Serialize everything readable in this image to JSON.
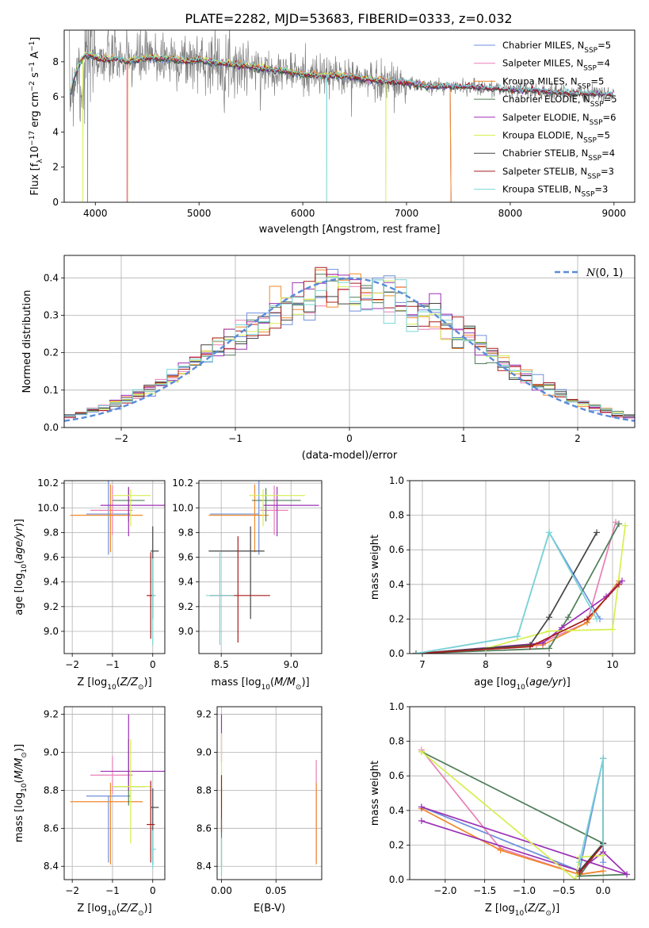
{
  "figure_title": "PLATE=2282, MJD=53683, FIBERID=0333, z=0.032",
  "colors": {
    "chabrier_miles": "#6e8fdc",
    "salpeter_miles": "#e87fb6",
    "kroupa_miles": "#f08a2b",
    "chabrier_elodie": "#4e7d58",
    "salpeter_elodie": "#9b30b5",
    "kroupa_elodie": "#d6ef50",
    "chabrier_stelib": "#444444",
    "salpeter_stelib": "#a81c1c",
    "kroupa_stelib": "#7ad6d6",
    "data": "#808080",
    "normal": "#5b8bd9"
  },
  "chart_data": [
    {
      "id": "spectrum",
      "type": "line",
      "xlabel": "wavelength [Angstrom, rest frame]",
      "ylabel": "Flux [f_λ10^-17 erg cm^-2 s^-1 A^-1]",
      "xlim": [
        3700,
        9200
      ],
      "ylim": [
        0,
        9.8
      ],
      "xticks": [
        4000,
        5000,
        6000,
        7000,
        8000,
        9000
      ],
      "yticks": [
        0,
        2,
        4,
        6,
        8
      ],
      "grid": false,
      "legend_placement": "top-right",
      "continuum": {
        "x": [
          3750,
          3800,
          3850,
          3900,
          4000,
          4100,
          4200,
          4300,
          4500,
          4700,
          4900,
          5000,
          5200,
          5400,
          5600,
          5800,
          6000,
          6200,
          6400,
          6600,
          6800,
          7000,
          7200,
          7400,
          7600,
          7800,
          8000,
          8200,
          8400,
          8600,
          8800,
          9000
        ],
        "y": [
          6.0,
          7.2,
          7.9,
          8.4,
          8.3,
          8.1,
          8.2,
          8.0,
          8.2,
          8.2,
          8.0,
          8.1,
          7.9,
          7.8,
          7.6,
          7.5,
          7.3,
          7.2,
          7.2,
          7.0,
          6.9,
          6.8,
          6.6,
          6.6,
          6.6,
          6.5,
          6.4,
          6.4,
          6.3,
          6.2,
          6.2,
          6.1
        ]
      },
      "series": [
        {
          "name": "Chabrier MILES, N_SSP=5",
          "color_key": "chabrier_miles",
          "drop_at": [
            3925
          ],
          "end": 7430
        },
        {
          "name": "Salpeter MILES, N_SSP=4",
          "color_key": "salpeter_miles",
          "drop_at": [
            4305
          ],
          "end": 7430
        },
        {
          "name": "Kroupa MILES, N_SSP=5",
          "color_key": "kroupa_miles",
          "drop_at": [
            4310
          ],
          "end": 7430
        },
        {
          "name": "Chabrier ELODIE, N_SSP=5",
          "color_key": "chabrier_elodie",
          "drop_at": [],
          "end": 9000
        },
        {
          "name": "Salpeter ELODIE, N_SSP=6",
          "color_key": "salpeter_elodie",
          "drop_at": [],
          "end": 9000
        },
        {
          "name": "Kroupa ELODIE, N_SSP=5",
          "color_key": "kroupa_elodie",
          "drop_at": [
            3880,
            6800
          ],
          "end": 6800
        },
        {
          "name": "Chabrier STELIB, N_SSP=4",
          "color_key": "chabrier_stelib",
          "drop_at": [],
          "end": 9000
        },
        {
          "name": "Salpeter STELIB, N_SSP=3",
          "color_key": "salpeter_stelib",
          "drop_at": [],
          "end": 9000
        },
        {
          "name": "Kroupa STELIB, N_SSP=3",
          "color_key": "kroupa_stelib",
          "drop_at": [
            6230
          ],
          "end": 9000
        }
      ]
    },
    {
      "id": "residuals",
      "type": "step",
      "xlabel": "(data-model)/error",
      "ylabel": "Normed distribution",
      "xlim": [
        -2.5,
        2.5
      ],
      "ylim": [
        0,
        0.46
      ],
      "xticks": [
        -2,
        -1,
        0,
        1,
        2
      ],
      "yticks": [
        0.0,
        0.1,
        0.2,
        0.3,
        0.4
      ],
      "grid": true,
      "legend_placement": "top-right",
      "legend_label": "N(0,1)",
      "bin_width": 0.1,
      "bin_start": -2.5
    },
    {
      "id": "age-vs-Z",
      "type": "errorbar",
      "xlabel": "Z [log10(Z/Z⊙)]",
      "ylabel": "age [log10(age/yr)]",
      "xlim": [
        -2.2,
        0.3
      ],
      "ylim": [
        8.82,
        10.22
      ],
      "xticks": [
        -2,
        -1,
        0
      ],
      "yticks": [
        9.0,
        9.2,
        9.4,
        9.6,
        9.8,
        10.0,
        10.2
      ],
      "grid": true,
      "points": [
        {
          "color_key": "chabrier_miles",
          "x": -1.1,
          "xerr": [
            0.55,
            0.55
          ],
          "y": 9.95,
          "yerr": [
            0.33,
            0.3
          ]
        },
        {
          "color_key": "salpeter_miles",
          "x": -1.0,
          "xerr": [
            0.55,
            0.5
          ],
          "y": 9.98,
          "yerr": [
            0.2,
            0.2
          ]
        },
        {
          "color_key": "kroupa_miles",
          "x": -1.05,
          "xerr": [
            1.0,
            0.8
          ],
          "y": 9.94,
          "yerr": [
            0.3,
            0.25
          ]
        },
        {
          "color_key": "chabrier_elodie",
          "x": -0.6,
          "xerr": [
            0.4,
            0.4
          ],
          "y": 10.06,
          "yerr": [
            0.17,
            0.1
          ]
        },
        {
          "color_key": "salpeter_elodie",
          "x": -0.6,
          "xerr": [
            0.7,
            0.9
          ],
          "y": 10.02,
          "yerr": [
            0.25,
            0.15
          ]
        },
        {
          "color_key": "kroupa_elodie",
          "x": -0.55,
          "xerr": [
            0.45,
            0.5
          ],
          "y": 10.1,
          "yerr": [
            0.25,
            0.05
          ]
        },
        {
          "color_key": "chabrier_stelib",
          "x": 0.0,
          "xerr": [
            0.05,
            0.15
          ],
          "y": 9.65,
          "yerr": [
            0.55,
            0.2
          ]
        },
        {
          "color_key": "salpeter_stelib",
          "x": -0.05,
          "xerr": [
            0.1,
            0.1
          ],
          "y": 9.29,
          "yerr": [
            0.35,
            0.35
          ]
        },
        {
          "color_key": "kroupa_stelib",
          "x": 0.0,
          "xerr": [
            0.02,
            0.08
          ],
          "y": 9.29,
          "yerr": [
            0.4,
            0.3
          ]
        }
      ]
    },
    {
      "id": "age-vs-mass",
      "type": "errorbar",
      "xlabel": "mass [log10(M/M⊙)]",
      "ylabel": "",
      "xlim": [
        8.34,
        9.22
      ],
      "ylim": [
        8.82,
        10.22
      ],
      "xticks": [
        8.5,
        9.0
      ],
      "yticks": [
        9.0,
        9.2,
        9.4,
        9.6,
        9.8,
        10.0,
        10.2
      ],
      "grid": true,
      "points": [
        {
          "color_key": "chabrier_miles",
          "x": 8.77,
          "xerr": [
            0.35,
            0.0
          ],
          "y": 9.95,
          "yerr": [
            0.33,
            0.3
          ]
        },
        {
          "color_key": "salpeter_miles",
          "x": 8.88,
          "xerr": [
            0.1,
            0.1
          ],
          "y": 9.98,
          "yerr": [
            0.2,
            0.2
          ]
        },
        {
          "color_key": "kroupa_miles",
          "x": 8.74,
          "xerr": [
            0.33,
            0.1
          ],
          "y": 9.94,
          "yerr": [
            0.3,
            0.25
          ]
        },
        {
          "color_key": "chabrier_elodie",
          "x": 8.82,
          "xerr": [
            0.1,
            0.25
          ],
          "y": 10.06,
          "yerr": [
            0.17,
            0.1
          ]
        },
        {
          "color_key": "salpeter_elodie",
          "x": 8.9,
          "xerr": [
            0.1,
            0.3
          ],
          "y": 10.02,
          "yerr": [
            0.25,
            0.15
          ]
        },
        {
          "color_key": "kroupa_elodie",
          "x": 8.8,
          "xerr": [
            0.1,
            0.3
          ],
          "y": 10.1,
          "yerr": [
            0.25,
            0.05
          ]
        },
        {
          "color_key": "chabrier_stelib",
          "x": 8.71,
          "xerr": [
            0.3,
            0.1
          ],
          "y": 9.65,
          "yerr": [
            0.55,
            0.2
          ]
        },
        {
          "color_key": "salpeter_stelib",
          "x": 8.62,
          "xerr": [
            0.2,
            0.23
          ],
          "y": 9.29,
          "yerr": [
            0.38,
            0.48
          ]
        },
        {
          "color_key": "kroupa_stelib",
          "x": 8.49,
          "xerr": [
            0.1,
            0.1
          ],
          "y": 9.29,
          "yerr": [
            0.4,
            0.35
          ]
        }
      ]
    },
    {
      "id": "massweight-vs-age",
      "type": "line",
      "xlabel": "age [log10(age/yr)]",
      "ylabel": "mass weight",
      "xlim": [
        6.8,
        10.35
      ],
      "ylim": [
        0,
        1.0
      ],
      "xticks": [
        7,
        8,
        9,
        10
      ],
      "yticks": [
        0.0,
        0.2,
        0.4,
        0.6,
        0.8,
        1.0
      ],
      "grid": true,
      "series": [
        {
          "color_key": "chabrier_miles",
          "x": [
            6.9,
            8.5,
            9.0,
            9.8
          ],
          "y": [
            0.0,
            0.1,
            0.7,
            0.2
          ]
        },
        {
          "color_key": "salpeter_miles",
          "x": [
            6.9,
            8.8,
            9.6,
            10.05
          ],
          "y": [
            0.0,
            0.05,
            0.18,
            0.76
          ]
        },
        {
          "color_key": "kroupa_miles",
          "x": [
            6.9,
            8.9,
            9.6,
            10.1
          ],
          "y": [
            0.0,
            0.05,
            0.18,
            0.42
          ]
        },
        {
          "color_key": "chabrier_elodie",
          "x": [
            6.9,
            9.0,
            9.3,
            10.1
          ],
          "y": [
            0.0,
            0.03,
            0.21,
            0.75
          ]
        },
        {
          "color_key": "salpeter_elodie",
          "x": [
            6.9,
            8.9,
            9.2,
            9.9,
            10.15
          ],
          "y": [
            0.0,
            0.06,
            0.15,
            0.33,
            0.42
          ]
        },
        {
          "color_key": "kroupa_elodie",
          "x": [
            6.9,
            8.0,
            9.0,
            10.0,
            10.2
          ],
          "y": [
            0.0,
            0.03,
            0.13,
            0.14,
            0.74
          ]
        },
        {
          "color_key": "chabrier_stelib",
          "x": [
            6.9,
            8.7,
            9.0,
            9.75
          ],
          "y": [
            0.0,
            0.05,
            0.21,
            0.7
          ]
        },
        {
          "color_key": "salpeter_stelib",
          "x": [
            6.9,
            8.7,
            9.6,
            10.1
          ],
          "y": [
            0.0,
            0.04,
            0.2,
            0.4
          ]
        },
        {
          "color_key": "kroupa_stelib",
          "x": [
            6.9,
            8.5,
            9.0,
            9.75
          ],
          "y": [
            0.0,
            0.1,
            0.7,
            0.2
          ]
        }
      ]
    },
    {
      "id": "mass-vs-Z",
      "type": "errorbar",
      "xlabel": "Z [log10(Z/Z⊙)]",
      "ylabel": "mass [log10(M/M⊙)]",
      "xlim": [
        -2.2,
        0.3
      ],
      "ylim": [
        8.33,
        9.24
      ],
      "xticks": [
        -2,
        -1,
        0
      ],
      "yticks": [
        8.4,
        8.6,
        8.8,
        9.0,
        9.2
      ],
      "grid": true,
      "points": [
        {
          "color_key": "chabrier_miles",
          "x": -1.1,
          "xerr": [
            0.55,
            0.55
          ],
          "y": 8.77,
          "yerr": [
            0.35,
            0.0
          ]
        },
        {
          "color_key": "salpeter_miles",
          "x": -1.0,
          "xerr": [
            0.55,
            0.5
          ],
          "y": 8.88,
          "yerr": [
            0.1,
            0.1
          ]
        },
        {
          "color_key": "kroupa_miles",
          "x": -1.05,
          "xerr": [
            1.0,
            0.8
          ],
          "y": 8.74,
          "yerr": [
            0.33,
            0.1
          ]
        },
        {
          "color_key": "chabrier_elodie",
          "x": -0.6,
          "xerr": [
            0.4,
            0.4
          ],
          "y": 8.82,
          "yerr": [
            0.1,
            0.25
          ]
        },
        {
          "color_key": "salpeter_elodie",
          "x": -0.6,
          "xerr": [
            0.7,
            0.9
          ],
          "y": 8.9,
          "yerr": [
            0.1,
            0.3
          ]
        },
        {
          "color_key": "kroupa_elodie",
          "x": -0.55,
          "xerr": [
            0.45,
            0.5
          ],
          "y": 8.82,
          "yerr": [
            0.3,
            0.25
          ]
        },
        {
          "color_key": "chabrier_stelib",
          "x": 0.0,
          "xerr": [
            0.05,
            0.15
          ],
          "y": 8.71,
          "yerr": [
            0.3,
            0.1
          ]
        },
        {
          "color_key": "salpeter_stelib",
          "x": -0.05,
          "xerr": [
            0.1,
            0.1
          ],
          "y": 8.62,
          "yerr": [
            0.2,
            0.23
          ]
        },
        {
          "color_key": "kroupa_stelib",
          "x": 0.0,
          "xerr": [
            0.02,
            0.08
          ],
          "y": 8.49,
          "yerr": [
            0.1,
            0.1
          ]
        }
      ]
    },
    {
      "id": "mass-vs-EBV",
      "type": "errorbar",
      "xlabel": "E(B-V)",
      "ylabel": "",
      "xlim": [
        -0.004,
        0.092
      ],
      "ylim": [
        8.33,
        9.24
      ],
      "xticks": [
        0.0,
        0.05
      ],
      "yticks": [
        8.4,
        8.6,
        8.8,
        9.0,
        9.2
      ],
      "grid": true,
      "points": [
        {
          "color_key": "salpeter_miles",
          "x": 0.087,
          "xerr": [
            0,
            0
          ],
          "y": 8.82,
          "yerr": [
            0.4,
            0.14
          ]
        },
        {
          "color_key": "kroupa_miles",
          "x": 0.087,
          "xerr": [
            0,
            0
          ],
          "y": 8.74,
          "yerr": [
            0.33,
            0.1
          ]
        },
        {
          "color_key": "salpeter_elodie",
          "x": 0.0,
          "xerr": [
            0,
            0
          ],
          "y": 9.05,
          "yerr": [
            0.1,
            0.15
          ]
        },
        {
          "color_key": "kroupa_elodie",
          "x": 0.0,
          "xerr": [
            0,
            0
          ],
          "y": 8.9,
          "yerr": [
            0.2,
            0.2
          ]
        },
        {
          "color_key": "salpeter_stelib",
          "x": 0.0,
          "xerr": [
            0,
            0
          ],
          "y": 8.78,
          "yerr": [
            0.2,
            0.1
          ]
        },
        {
          "color_key": "chabrier_elodie",
          "x": 0.0,
          "xerr": [
            0,
            0
          ],
          "y": 8.55,
          "yerr": [
            0.15,
            0.1
          ]
        },
        {
          "color_key": "kroupa_stelib",
          "x": 0.0,
          "xerr": [
            0,
            0
          ],
          "y": 8.45,
          "yerr": [
            0.1,
            0.1
          ]
        }
      ]
    },
    {
      "id": "massweight-vs-Z",
      "type": "line",
      "xlabel": "Z [log10(Z/Z⊙)]",
      "ylabel": "mass weight",
      "xlim": [
        -2.45,
        0.4
      ],
      "ylim": [
        0,
        1.0
      ],
      "xticks": [
        -2.0,
        -1.5,
        -1.0,
        -0.5,
        0.0
      ],
      "yticks": [
        0.0,
        0.2,
        0.4,
        0.6,
        0.8,
        1.0
      ],
      "grid": true,
      "series": [
        {
          "color_key": "chabrier_miles",
          "x": [
            -2.3,
            -0.3,
            0.0,
            0.0
          ],
          "y": [
            0.42,
            0.05,
            0.7,
            0.1
          ]
        },
        {
          "color_key": "salpeter_miles",
          "x": [
            -2.3,
            -1.3,
            -0.3,
            0.0
          ],
          "y": [
            0.75,
            0.18,
            0.03,
            0.05
          ]
        },
        {
          "color_key": "kroupa_miles",
          "x": [
            -2.3,
            -1.3,
            -0.3,
            0.0
          ],
          "y": [
            0.41,
            0.17,
            0.03,
            0.05
          ]
        },
        {
          "color_key": "chabrier_elodie",
          "x": [
            -2.3,
            0.0,
            -0.3,
            0.3
          ],
          "y": [
            0.74,
            0.21,
            0.02,
            0.03
          ]
        },
        {
          "color_key": "salpeter_elodie",
          "x": [
            -2.3,
            -0.3,
            0.0,
            0.3,
            -2.3
          ],
          "y": [
            0.34,
            0.05,
            0.16,
            0.03,
            0.42
          ]
        },
        {
          "color_key": "kroupa_elodie",
          "x": [
            -2.3,
            -0.35,
            -0.3,
            0.0
          ],
          "y": [
            0.74,
            0.0,
            0.13,
            0.14
          ]
        },
        {
          "color_key": "chabrier_stelib",
          "x": [
            -0.3,
            0.0,
            0.0
          ],
          "y": [
            0.05,
            0.21,
            0.7
          ]
        },
        {
          "color_key": "salpeter_stelib",
          "x": [
            -0.3,
            0.0
          ],
          "y": [
            0.04,
            0.2
          ]
        },
        {
          "color_key": "kroupa_stelib",
          "x": [
            -0.3,
            0.0,
            0.0
          ],
          "y": [
            0.1,
            0.7,
            0.2
          ]
        }
      ]
    }
  ]
}
